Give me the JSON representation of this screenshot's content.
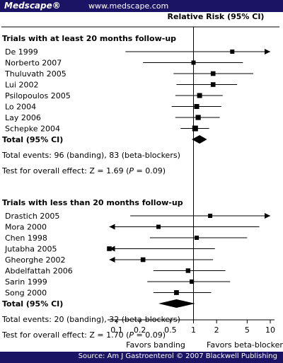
{
  "header": {
    "logo": "Medscape®",
    "url": "www.medscape.com"
  },
  "footer": {
    "source": "Source: Am J Gastroenterol © 2007 Blackwell Publishing"
  },
  "chart_data": {
    "type": "forest",
    "column_header": "Relative Risk (95% CI)",
    "scale": "log",
    "xlim": [
      0.08,
      10
    ],
    "x_ticks": [
      0.1,
      0.2,
      0.5,
      1,
      2,
      5,
      10
    ],
    "x_tick_labels": [
      "0.1",
      "0.2",
      "0.5",
      "1",
      "2",
      "5",
      "10"
    ],
    "favors_left": "Favors banding",
    "favors_right": "Favors beta-blocker",
    "groups": [
      {
        "heading": "Trials with at least 20 months follow-up",
        "studies": [
          {
            "name": "De 1999",
            "rr": 3.2,
            "lo": 0.13,
            "hi": 10,
            "arrow_right": true,
            "arrow_left": false,
            "weight": 1
          },
          {
            "name": "Norberto 2007",
            "rr": 1.0,
            "lo": 0.22,
            "hi": 4.4,
            "arrow_right": false,
            "arrow_left": false,
            "weight": 1
          },
          {
            "name": "Thuluvath 2005",
            "rr": 1.8,
            "lo": 0.55,
            "hi": 6.0,
            "arrow_right": false,
            "arrow_left": false,
            "weight": 1.3
          },
          {
            "name": "Lui 2002",
            "rr": 1.8,
            "lo": 0.6,
            "hi": 3.7,
            "arrow_right": false,
            "arrow_left": false,
            "weight": 1.3
          },
          {
            "name": "Psilopoulos 2005",
            "rr": 1.2,
            "lo": 0.58,
            "hi": 2.4,
            "arrow_right": false,
            "arrow_left": false,
            "weight": 1.5
          },
          {
            "name": "Lo 2004",
            "rr": 1.1,
            "lo": 0.52,
            "hi": 2.3,
            "arrow_right": false,
            "arrow_left": false,
            "weight": 1.5
          },
          {
            "name": "Lay 2006",
            "rr": 1.15,
            "lo": 0.58,
            "hi": 2.2,
            "arrow_right": false,
            "arrow_left": false,
            "weight": 1.6
          },
          {
            "name": "Schepke 2004",
            "rr": 1.05,
            "lo": 0.68,
            "hi": 1.6,
            "arrow_right": false,
            "arrow_left": false,
            "weight": 2
          }
        ],
        "total": {
          "label": "Total (95% CI)",
          "rr": 1.2,
          "lo": 0.95,
          "hi": 1.5
        },
        "events": "Total events: 96 (banding), 83 (beta-blockers)",
        "test_prefix": "Test for overall effect: Z = 1.69 (",
        "test_p": "P",
        "test_suffix": " = 0.09)"
      },
      {
        "heading": "Trials with less than 20 months follow-up",
        "studies": [
          {
            "name": "Drastich 2005",
            "rr": 1.65,
            "lo": 0.15,
            "hi": 10,
            "arrow_right": true,
            "arrow_left": false,
            "weight": 1
          },
          {
            "name": "Mora 2000",
            "rr": 0.35,
            "lo": 0.08,
            "hi": 7.2,
            "arrow_right": false,
            "arrow_left": true,
            "weight": 1
          },
          {
            "name": "Chen 1998",
            "rr": 1.1,
            "lo": 0.27,
            "hi": 5.0,
            "arrow_right": false,
            "arrow_left": false,
            "weight": 1
          },
          {
            "name": "Jutabha 2005",
            "rr": 0.08,
            "lo": 0.08,
            "hi": 1.9,
            "arrow_right": false,
            "arrow_left": true,
            "weight": 1.3
          },
          {
            "name": "Gheorghe 2002",
            "rr": 0.22,
            "lo": 0.08,
            "hi": 1.8,
            "arrow_right": false,
            "arrow_left": true,
            "weight": 1.3
          },
          {
            "name": "Abdelfattah 2006",
            "rr": 0.85,
            "lo": 0.3,
            "hi": 2.6,
            "arrow_right": false,
            "arrow_left": false,
            "weight": 1.2
          },
          {
            "name": "Sarin 1999",
            "rr": 0.95,
            "lo": 0.25,
            "hi": 3.0,
            "arrow_right": false,
            "arrow_left": false,
            "weight": 1.1
          },
          {
            "name": "Song 2000",
            "rr": 0.6,
            "lo": 0.3,
            "hi": 1.7,
            "arrow_right": false,
            "arrow_left": false,
            "weight": 1.4
          }
        ],
        "total": {
          "label": "Total (95% CI)",
          "rr": 0.6,
          "lo": 0.35,
          "hi": 1.05
        },
        "events": "Total events: 20 (banding), 32 (beta-blockers)",
        "test_prefix": "Test for overall effect: Z = 1.70 (",
        "test_p": "P",
        "test_suffix": " = 0.09)"
      }
    ]
  }
}
